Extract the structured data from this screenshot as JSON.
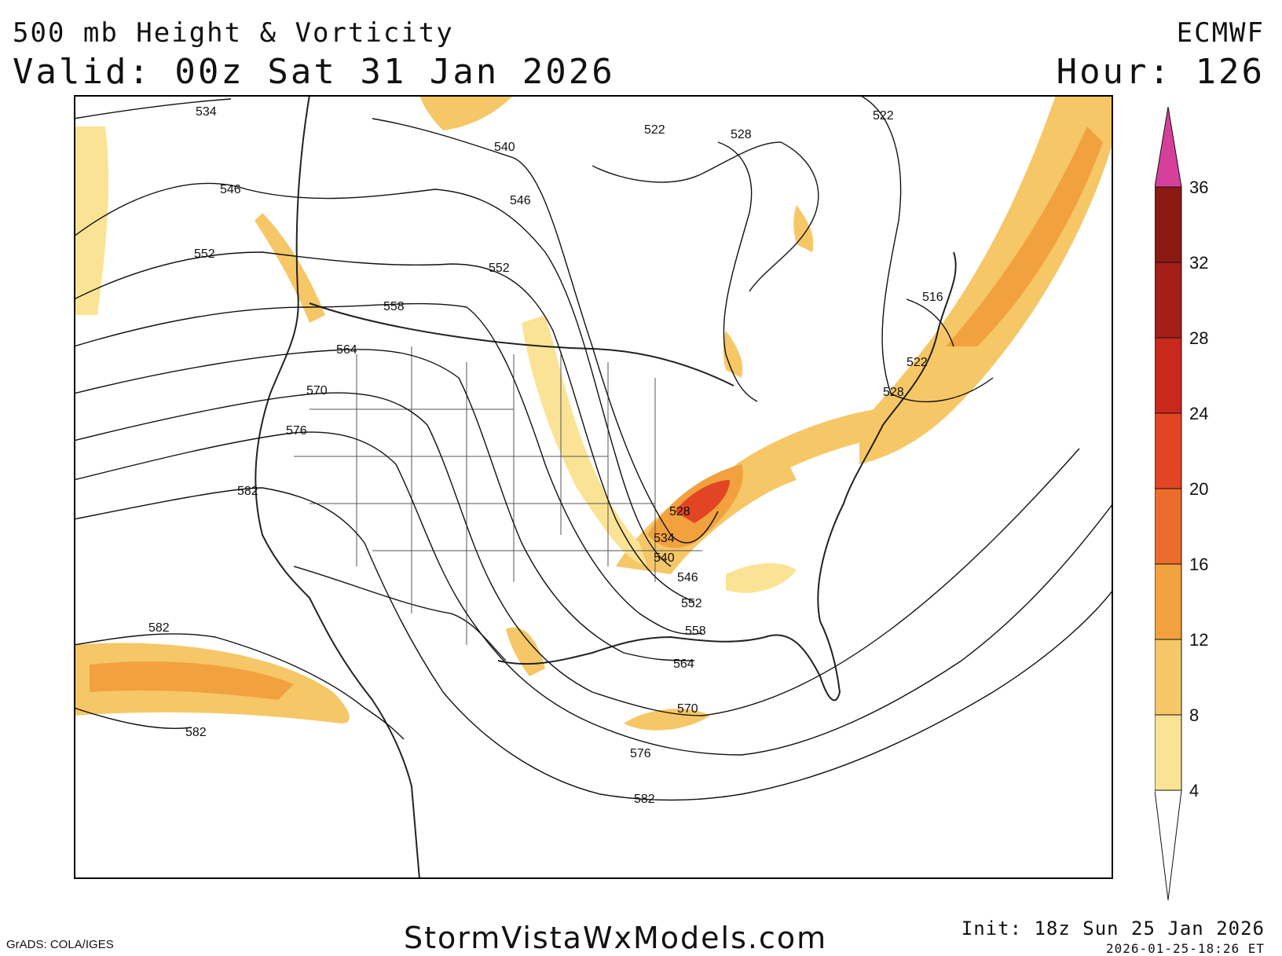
{
  "header": {
    "title": "500 mb Height & Vorticity",
    "valid": "Valid: 00z Sat 31 Jan 2026",
    "model": "ECMWF",
    "hour": "Hour: 126"
  },
  "footer": {
    "grads": "GrADS: COLA/IGES",
    "site": "StormVistaWxModels.com",
    "init": "Init: 18z Sun 25 Jan 2026",
    "timestamp": "2026-01-25-18:26 ET"
  },
  "contour_labels": {
    "l534": "534",
    "l540": "540",
    "l546": "546",
    "l552": "552",
    "l558": "558",
    "l564": "564",
    "l570": "570",
    "l576": "576",
    "l582": "582",
    "l522": "522",
    "l528": "528",
    "l516": "516"
  },
  "colorbar": {
    "ticks": [
      "36",
      "32",
      "28",
      "24",
      "20",
      "16",
      "12",
      "8",
      "4"
    ],
    "colors": {
      "top_arrow": "#d6409a",
      "c32": "#8b1a14",
      "c28": "#a31f18",
      "c24": "#c9281c",
      "c20": "#e24524",
      "c16": "#ec6c2c",
      "c12": "#f1a13e",
      "c8": "#f6c767",
      "c4": "#fbe395"
    }
  }
}
